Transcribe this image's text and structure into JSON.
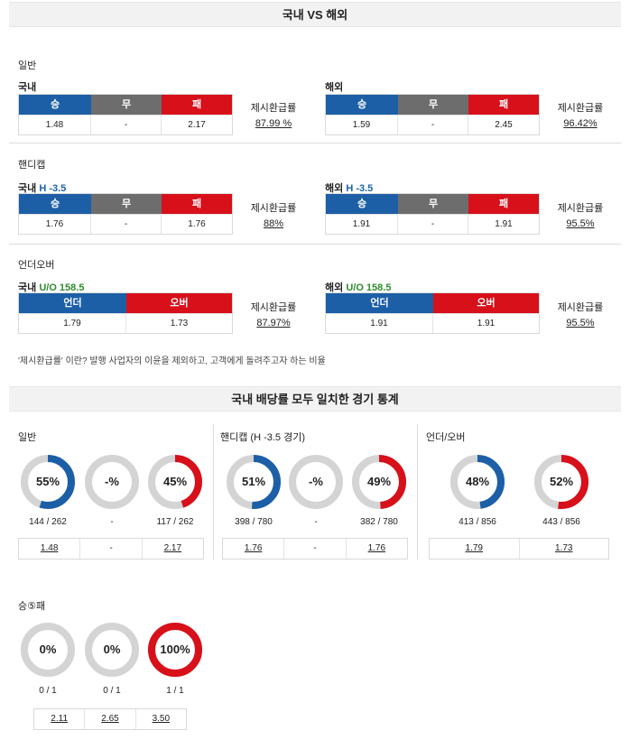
{
  "header": {
    "title": "국내 VS 해외"
  },
  "sections": {
    "general": {
      "title": "일반"
    },
    "handicap": {
      "title": "핸디캡"
    },
    "overunder": {
      "title": "언더오버"
    }
  },
  "refund_label": "제시환급률",
  "general": {
    "domestic": {
      "label": "국내",
      "headers": [
        "승",
        "무",
        "패"
      ],
      "values": [
        "1.48",
        "-",
        "2.17"
      ],
      "refund": "87.99 %"
    },
    "overseas": {
      "label": "해외",
      "headers": [
        "승",
        "무",
        "패"
      ],
      "values": [
        "1.59",
        "-",
        "2.45"
      ],
      "refund": "96.42%"
    }
  },
  "handicap": {
    "domestic": {
      "label": "국내",
      "tag": "H -3.5",
      "headers": [
        "승",
        "무",
        "패"
      ],
      "values": [
        "1.76",
        "-",
        "1.76"
      ],
      "refund": "88%"
    },
    "overseas": {
      "label": "해외",
      "tag": "H -3.5",
      "headers": [
        "승",
        "무",
        "패"
      ],
      "values": [
        "1.91",
        "-",
        "1.91"
      ],
      "refund": "95.5%"
    }
  },
  "overunder": {
    "domestic": {
      "label": "국내",
      "tag": "U/O 158.5",
      "headers": [
        "언더",
        "오버"
      ],
      "values": [
        "1.79",
        "1.73"
      ],
      "refund": "87.97%"
    },
    "overseas": {
      "label": "해외",
      "tag": "U/O 158.5",
      "headers": [
        "언더",
        "오버"
      ],
      "values": [
        "1.91",
        "1.91"
      ],
      "refund": "95.5%"
    }
  },
  "note": "'제시환급률' 이란? 발행 사업자의 이윤을 제외하고, 고객에게 돌려주고자 하는 비율",
  "stats_header": {
    "title": "국내 배당률 모두 일치한 경기 통계"
  },
  "stats": {
    "general": {
      "title": "일반",
      "donuts": [
        {
          "label": "55%",
          "fraction": 0.55,
          "color": "#1c5fa6",
          "count": "144 / 262"
        },
        {
          "label": "-%",
          "fraction": 0,
          "color": "#cccccc",
          "count": "-"
        },
        {
          "label": "45%",
          "fraction": 0.45,
          "color": "#d7101a",
          "count": "117 / 262"
        }
      ],
      "odds": [
        "1.48",
        "-",
        "2.17"
      ]
    },
    "handicap": {
      "title": "핸디캡 (H -3.5 경기)",
      "donuts": [
        {
          "label": "51%",
          "fraction": 0.51,
          "color": "#1c5fa6",
          "count": "398 / 780"
        },
        {
          "label": "-%",
          "fraction": 0,
          "color": "#cccccc",
          "count": "-"
        },
        {
          "label": "49%",
          "fraction": 0.49,
          "color": "#d7101a",
          "count": "382 / 780"
        }
      ],
      "odds": [
        "1.76",
        "-",
        "1.76"
      ]
    },
    "overunder": {
      "title": "언더/오버",
      "donuts": [
        {
          "label": "48%",
          "fraction": 0.48,
          "color": "#1c5fa6",
          "count": "413 / 856"
        },
        {
          "label": "52%",
          "fraction": 0.52,
          "color": "#d7101a",
          "count": "443 / 856"
        }
      ],
      "odds": [
        "1.79",
        "1.73"
      ]
    },
    "win5": {
      "title": "승⑤패",
      "donuts": [
        {
          "label": "0%",
          "fraction": 0,
          "color": "#1c5fa6",
          "count": "0 / 1"
        },
        {
          "label": "0%",
          "fraction": 0,
          "color": "#cccccc",
          "count": "0 / 1"
        },
        {
          "label": "100%",
          "fraction": 1,
          "color": "#d7101a",
          "count": "1 / 1"
        }
      ],
      "odds": [
        "2.11",
        "2.65",
        "3.50"
      ]
    }
  },
  "colors": {
    "blue": "#1c5fa6",
    "gray": "#6d6d6d",
    "red": "#d7101a",
    "track": "#d4d4d4"
  }
}
